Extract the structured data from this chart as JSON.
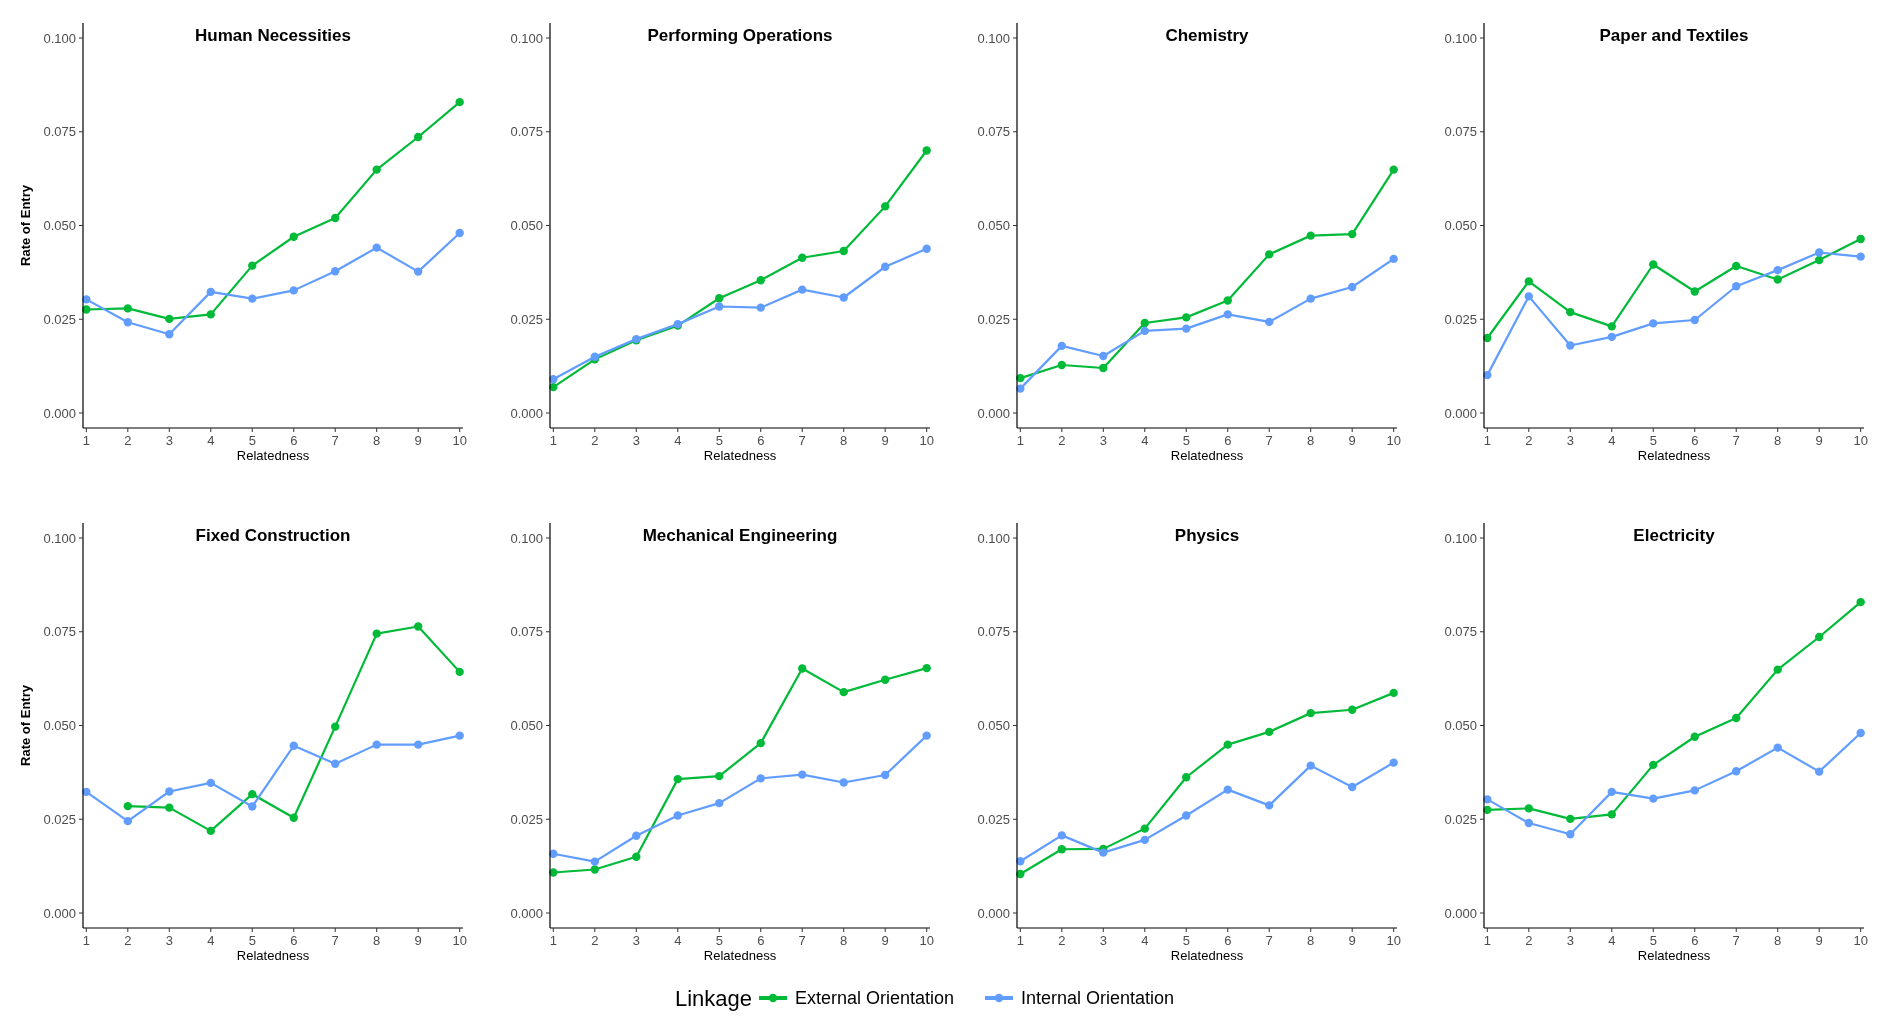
{
  "chart_data": [
    {
      "type": "line",
      "title": "Human Necessities",
      "xlabel": "Relatedness",
      "ylabel": "Rate of Entry",
      "legend": "bottom",
      "legend_title": "Linkage",
      "marker": "circle",
      "line_style": "solid",
      "grid": false,
      "x": [
        1,
        2,
        3,
        4,
        5,
        6,
        7,
        8,
        9,
        10
      ],
      "xlim": [
        0.92,
        10.08
      ],
      "xticks": [
        1,
        2,
        3,
        4,
        5,
        6,
        7,
        8,
        9,
        10
      ],
      "ylim": [
        -0.004,
        0.104
      ],
      "yticks": [
        {
          "value": 0,
          "label": "0.000"
        },
        {
          "value": 0.025,
          "label": "0.025"
        },
        {
          "value": 0.05,
          "label": "0.050"
        },
        {
          "value": 0.075,
          "label": "0.075"
        },
        {
          "value": 0.1,
          "label": "0.100"
        }
      ],
      "series": [
        {
          "name": "External Orientation",
          "color": "#00ba38",
          "values": [
            0.0276,
            0.0279,
            0.0251,
            0.0263,
            0.0393,
            0.047,
            0.052,
            0.0649,
            0.0736,
            0.0829
          ]
        },
        {
          "name": "Internal Orientation",
          "color": "#619cff",
          "values": [
            0.0303,
            0.0242,
            0.021,
            0.0323,
            0.0305,
            0.0327,
            0.0378,
            0.0441,
            0.0377,
            0.048
          ]
        }
      ]
    },
    {
      "type": "line",
      "title": "Performing Operations",
      "xlabel": "Relatedness",
      "marker": "circle",
      "line_style": "solid",
      "grid": false,
      "x": [
        1,
        2,
        3,
        4,
        5,
        6,
        7,
        8,
        9,
        10
      ],
      "xlim": [
        0.92,
        10.08
      ],
      "xticks": [
        1,
        2,
        3,
        4,
        5,
        6,
        7,
        8,
        9,
        10
      ],
      "ylim": [
        -0.004,
        0.104
      ],
      "yticks": [
        {
          "value": 0,
          "label": "0.000"
        },
        {
          "value": 0.025,
          "label": "0.025"
        },
        {
          "value": 0.05,
          "label": "0.050"
        },
        {
          "value": 0.075,
          "label": "0.075"
        },
        {
          "value": 0.1,
          "label": "0.100"
        }
      ],
      "series": [
        {
          "color": "#00ba38",
          "values": [
            0.0069,
            0.0143,
            0.0194,
            0.0233,
            0.0306,
            0.0354,
            0.0414,
            0.0432,
            0.0551,
            0.07
          ]
        },
        {
          "color": "#619cff",
          "values": [
            0.009,
            0.015,
            0.0197,
            0.0237,
            0.0284,
            0.0281,
            0.0329,
            0.0308,
            0.039,
            0.0438
          ]
        }
      ]
    },
    {
      "type": "line",
      "title": "Chemistry",
      "xlabel": "Relatedness",
      "marker": "circle",
      "line_style": "solid",
      "grid": false,
      "x": [
        1,
        2,
        3,
        4,
        5,
        6,
        7,
        8,
        9,
        10
      ],
      "xlim": [
        0.92,
        10.08
      ],
      "xticks": [
        1,
        2,
        3,
        4,
        5,
        6,
        7,
        8,
        9,
        10
      ],
      "ylim": [
        -0.004,
        0.104
      ],
      "yticks": [
        {
          "value": 0,
          "label": "0.000"
        },
        {
          "value": 0.025,
          "label": "0.025"
        },
        {
          "value": 0.05,
          "label": "0.050"
        },
        {
          "value": 0.075,
          "label": "0.075"
        },
        {
          "value": 0.1,
          "label": "0.100"
        }
      ],
      "series": [
        {
          "color": "#00ba38",
          "values": [
            0.0093,
            0.0128,
            0.012,
            0.024,
            0.0255,
            0.03,
            0.0423,
            0.0473,
            0.0477,
            0.0649
          ]
        },
        {
          "color": "#619cff",
          "values": [
            0.0065,
            0.0179,
            0.0152,
            0.0219,
            0.0225,
            0.0263,
            0.0243,
            0.0305,
            0.0336,
            0.0411
          ]
        }
      ]
    },
    {
      "type": "line",
      "title": "Paper and Textiles",
      "xlabel": "Relatedness",
      "marker": "circle",
      "line_style": "solid",
      "grid": false,
      "x": [
        1,
        2,
        3,
        4,
        5,
        6,
        7,
        8,
        9,
        10
      ],
      "xlim": [
        0.92,
        10.08
      ],
      "xticks": [
        1,
        2,
        3,
        4,
        5,
        6,
        7,
        8,
        9,
        10
      ],
      "ylim": [
        -0.004,
        0.104
      ],
      "yticks": [
        {
          "value": 0,
          "label": "0.000"
        },
        {
          "value": 0.025,
          "label": "0.025"
        },
        {
          "value": 0.05,
          "label": "0.050"
        },
        {
          "value": 0.075,
          "label": "0.075"
        },
        {
          "value": 0.1,
          "label": "0.100"
        }
      ],
      "series": [
        {
          "color": "#00ba38",
          "values": [
            0.02,
            0.0351,
            0.0269,
            0.0231,
            0.0396,
            0.0324,
            0.0392,
            0.0356,
            0.0408,
            0.0464
          ]
        },
        {
          "color": "#619cff",
          "values": [
            0.0101,
            0.0311,
            0.018,
            0.0203,
            0.0239,
            0.0248,
            0.0338,
            0.0381,
            0.0428,
            0.0417
          ]
        }
      ]
    },
    {
      "type": "line",
      "title": "Fixed Construction",
      "xlabel": "Relatedness",
      "ylabel": "Rate of Entry",
      "marker": "circle",
      "line_style": "solid",
      "grid": false,
      "x": [
        1,
        2,
        3,
        4,
        5,
        6,
        7,
        8,
        9,
        10
      ],
      "xlim": [
        0.92,
        10.08
      ],
      "xticks": [
        1,
        2,
        3,
        4,
        5,
        6,
        7,
        8,
        9,
        10
      ],
      "ylim": [
        -0.004,
        0.104
      ],
      "yticks": [
        {
          "value": 0,
          "label": "0.000"
        },
        {
          "value": 0.025,
          "label": "0.025"
        },
        {
          "value": 0.05,
          "label": "0.050"
        },
        {
          "value": 0.075,
          "label": "0.075"
        },
        {
          "value": 0.1,
          "label": "0.100"
        }
      ],
      "series": [
        {
          "color": "#00ba38",
          "values": [
            null,
            0.0285,
            0.0281,
            0.0219,
            0.0317,
            0.0254,
            0.0497,
            0.0745,
            0.0764,
            0.0643
          ]
        },
        {
          "color": "#619cff",
          "values": [
            0.0323,
            0.0245,
            0.0324,
            0.0347,
            0.0284,
            0.0446,
            0.0398,
            0.0449,
            0.0449,
            0.0473
          ]
        }
      ]
    },
    {
      "type": "line",
      "title": "Mechanical Engineering",
      "xlabel": "Relatedness",
      "marker": "circle",
      "line_style": "solid",
      "grid": false,
      "x": [
        1,
        2,
        3,
        4,
        5,
        6,
        7,
        8,
        9,
        10
      ],
      "xlim": [
        0.92,
        10.08
      ],
      "xticks": [
        1,
        2,
        3,
        4,
        5,
        6,
        7,
        8,
        9,
        10
      ],
      "ylim": [
        -0.004,
        0.104
      ],
      "yticks": [
        {
          "value": 0,
          "label": "0.000"
        },
        {
          "value": 0.025,
          "label": "0.025"
        },
        {
          "value": 0.05,
          "label": "0.050"
        },
        {
          "value": 0.075,
          "label": "0.075"
        },
        {
          "value": 0.1,
          "label": "0.100"
        }
      ],
      "series": [
        {
          "color": "#00ba38",
          "values": [
            0.0108,
            0.0116,
            0.015,
            0.0357,
            0.0365,
            0.0453,
            0.0652,
            0.0589,
            0.0622,
            0.0653
          ]
        },
        {
          "color": "#619cff",
          "values": [
            0.0158,
            0.0137,
            0.0206,
            0.026,
            0.0293,
            0.0359,
            0.0369,
            0.0348,
            0.0368,
            0.0473
          ]
        }
      ]
    },
    {
      "type": "line",
      "title": "Physics",
      "xlabel": "Relatedness",
      "marker": "circle",
      "line_style": "solid",
      "grid": false,
      "x": [
        1,
        2,
        3,
        4,
        5,
        6,
        7,
        8,
        9,
        10
      ],
      "xlim": [
        0.92,
        10.08
      ],
      "xticks": [
        1,
        2,
        3,
        4,
        5,
        6,
        7,
        8,
        9,
        10
      ],
      "ylim": [
        -0.004,
        0.104
      ],
      "yticks": [
        {
          "value": 0,
          "label": "0.000"
        },
        {
          "value": 0.025,
          "label": "0.025"
        },
        {
          "value": 0.05,
          "label": "0.050"
        },
        {
          "value": 0.075,
          "label": "0.075"
        },
        {
          "value": 0.1,
          "label": "0.100"
        }
      ],
      "series": [
        {
          "color": "#00ba38",
          "values": [
            0.0104,
            0.017,
            0.0171,
            0.0225,
            0.0362,
            0.0449,
            0.0483,
            0.0533,
            0.0542,
            0.0587
          ]
        },
        {
          "color": "#619cff",
          "values": [
            0.0138,
            0.0207,
            0.0161,
            0.0195,
            0.026,
            0.0329,
            0.0287,
            0.0393,
            0.0336,
            0.0401
          ]
        }
      ]
    },
    {
      "type": "line",
      "title": "Electricity",
      "xlabel": "Relatedness",
      "marker": "circle",
      "line_style": "solid",
      "grid": false,
      "x": [
        1,
        2,
        3,
        4,
        5,
        6,
        7,
        8,
        9,
        10
      ],
      "xlim": [
        0.92,
        10.08
      ],
      "xticks": [
        1,
        2,
        3,
        4,
        5,
        6,
        7,
        8,
        9,
        10
      ],
      "ylim": [
        -0.004,
        0.104
      ],
      "yticks": [
        {
          "value": 0,
          "label": "0.000"
        },
        {
          "value": 0.025,
          "label": "0.025"
        },
        {
          "value": 0.05,
          "label": "0.050"
        },
        {
          "value": 0.075,
          "label": "0.075"
        },
        {
          "value": 0.1,
          "label": "0.100"
        }
      ],
      "series": [
        {
          "color": "#00ba38",
          "values": [
            0.0275,
            0.0279,
            0.0251,
            0.0263,
            0.0395,
            0.047,
            0.052,
            0.0649,
            0.0736,
            0.0829
          ]
        },
        {
          "color": "#619cff",
          "values": [
            0.0303,
            0.024,
            0.021,
            0.0323,
            0.0305,
            0.0327,
            0.0378,
            0.0441,
            0.0377,
            0.048
          ]
        }
      ]
    }
  ]
}
